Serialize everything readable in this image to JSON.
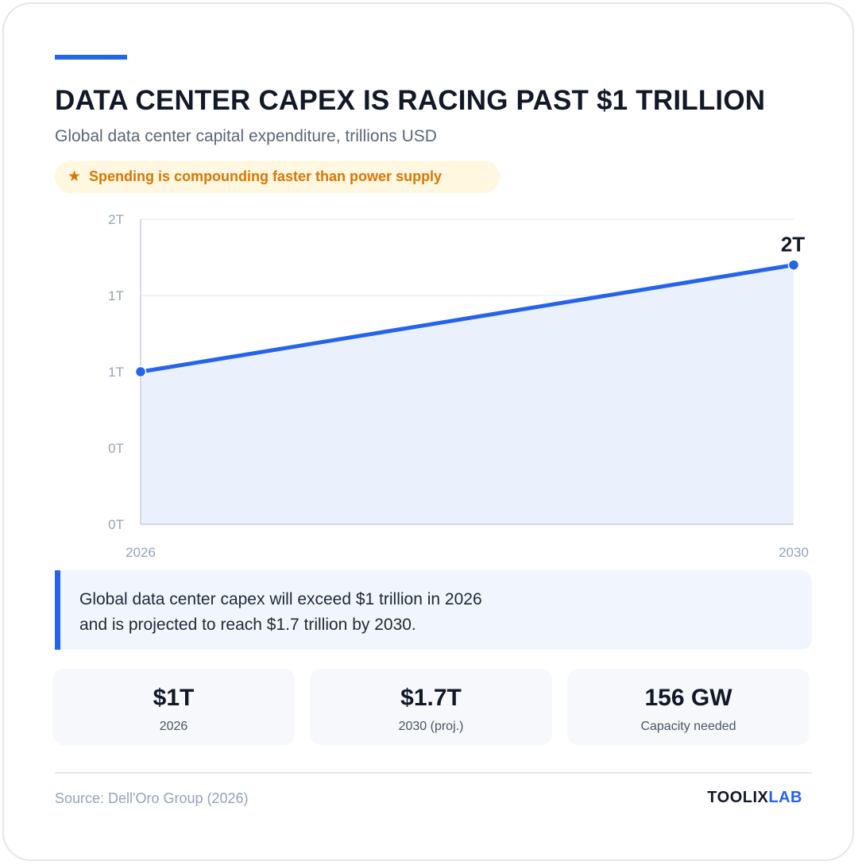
{
  "header": {
    "title": "DATA CENTER CAPEX IS RACING PAST $1 TRILLION",
    "subtitle": "Global data center capital expenditure, trillions USD",
    "highlight": "Spending is compounding faster than power supply",
    "highlight_icon": "star-icon"
  },
  "chart_data": {
    "type": "area",
    "title": "",
    "xlabel": "",
    "ylabel": "",
    "x": [
      "2026",
      "2030"
    ],
    "series": [
      {
        "values": [
          1.0,
          1.7
        ]
      }
    ],
    "ylim": [
      0,
      2
    ],
    "y_tick_labels": [
      "0T",
      "0T",
      "1T",
      "1T",
      "2T"
    ],
    "x_tick_labels": [
      "2026",
      "2030"
    ],
    "end_label": "2T",
    "grid": true,
    "line_color": "#2563eb",
    "fill_color": "#eaf0fc"
  },
  "note": {
    "line1": "Global data center capex will exceed $1 trillion in 2026",
    "line2": "and is projected to reach $1.7 trillion by 2030."
  },
  "stats": [
    {
      "value": "$1T",
      "label": "2026"
    },
    {
      "value": "$1.7T",
      "label": "2030 (proj.)"
    },
    {
      "value": "156 GW",
      "label": "Capacity needed"
    }
  ],
  "footer": {
    "source": "Source: Dell'Oro Group (2026)",
    "brand_part1": "TOOLIX",
    "brand_part2": "LAB"
  },
  "colors": {
    "accent": "#2563eb",
    "highlight": "#d97706",
    "highlight_bg": "#fff7e0"
  }
}
